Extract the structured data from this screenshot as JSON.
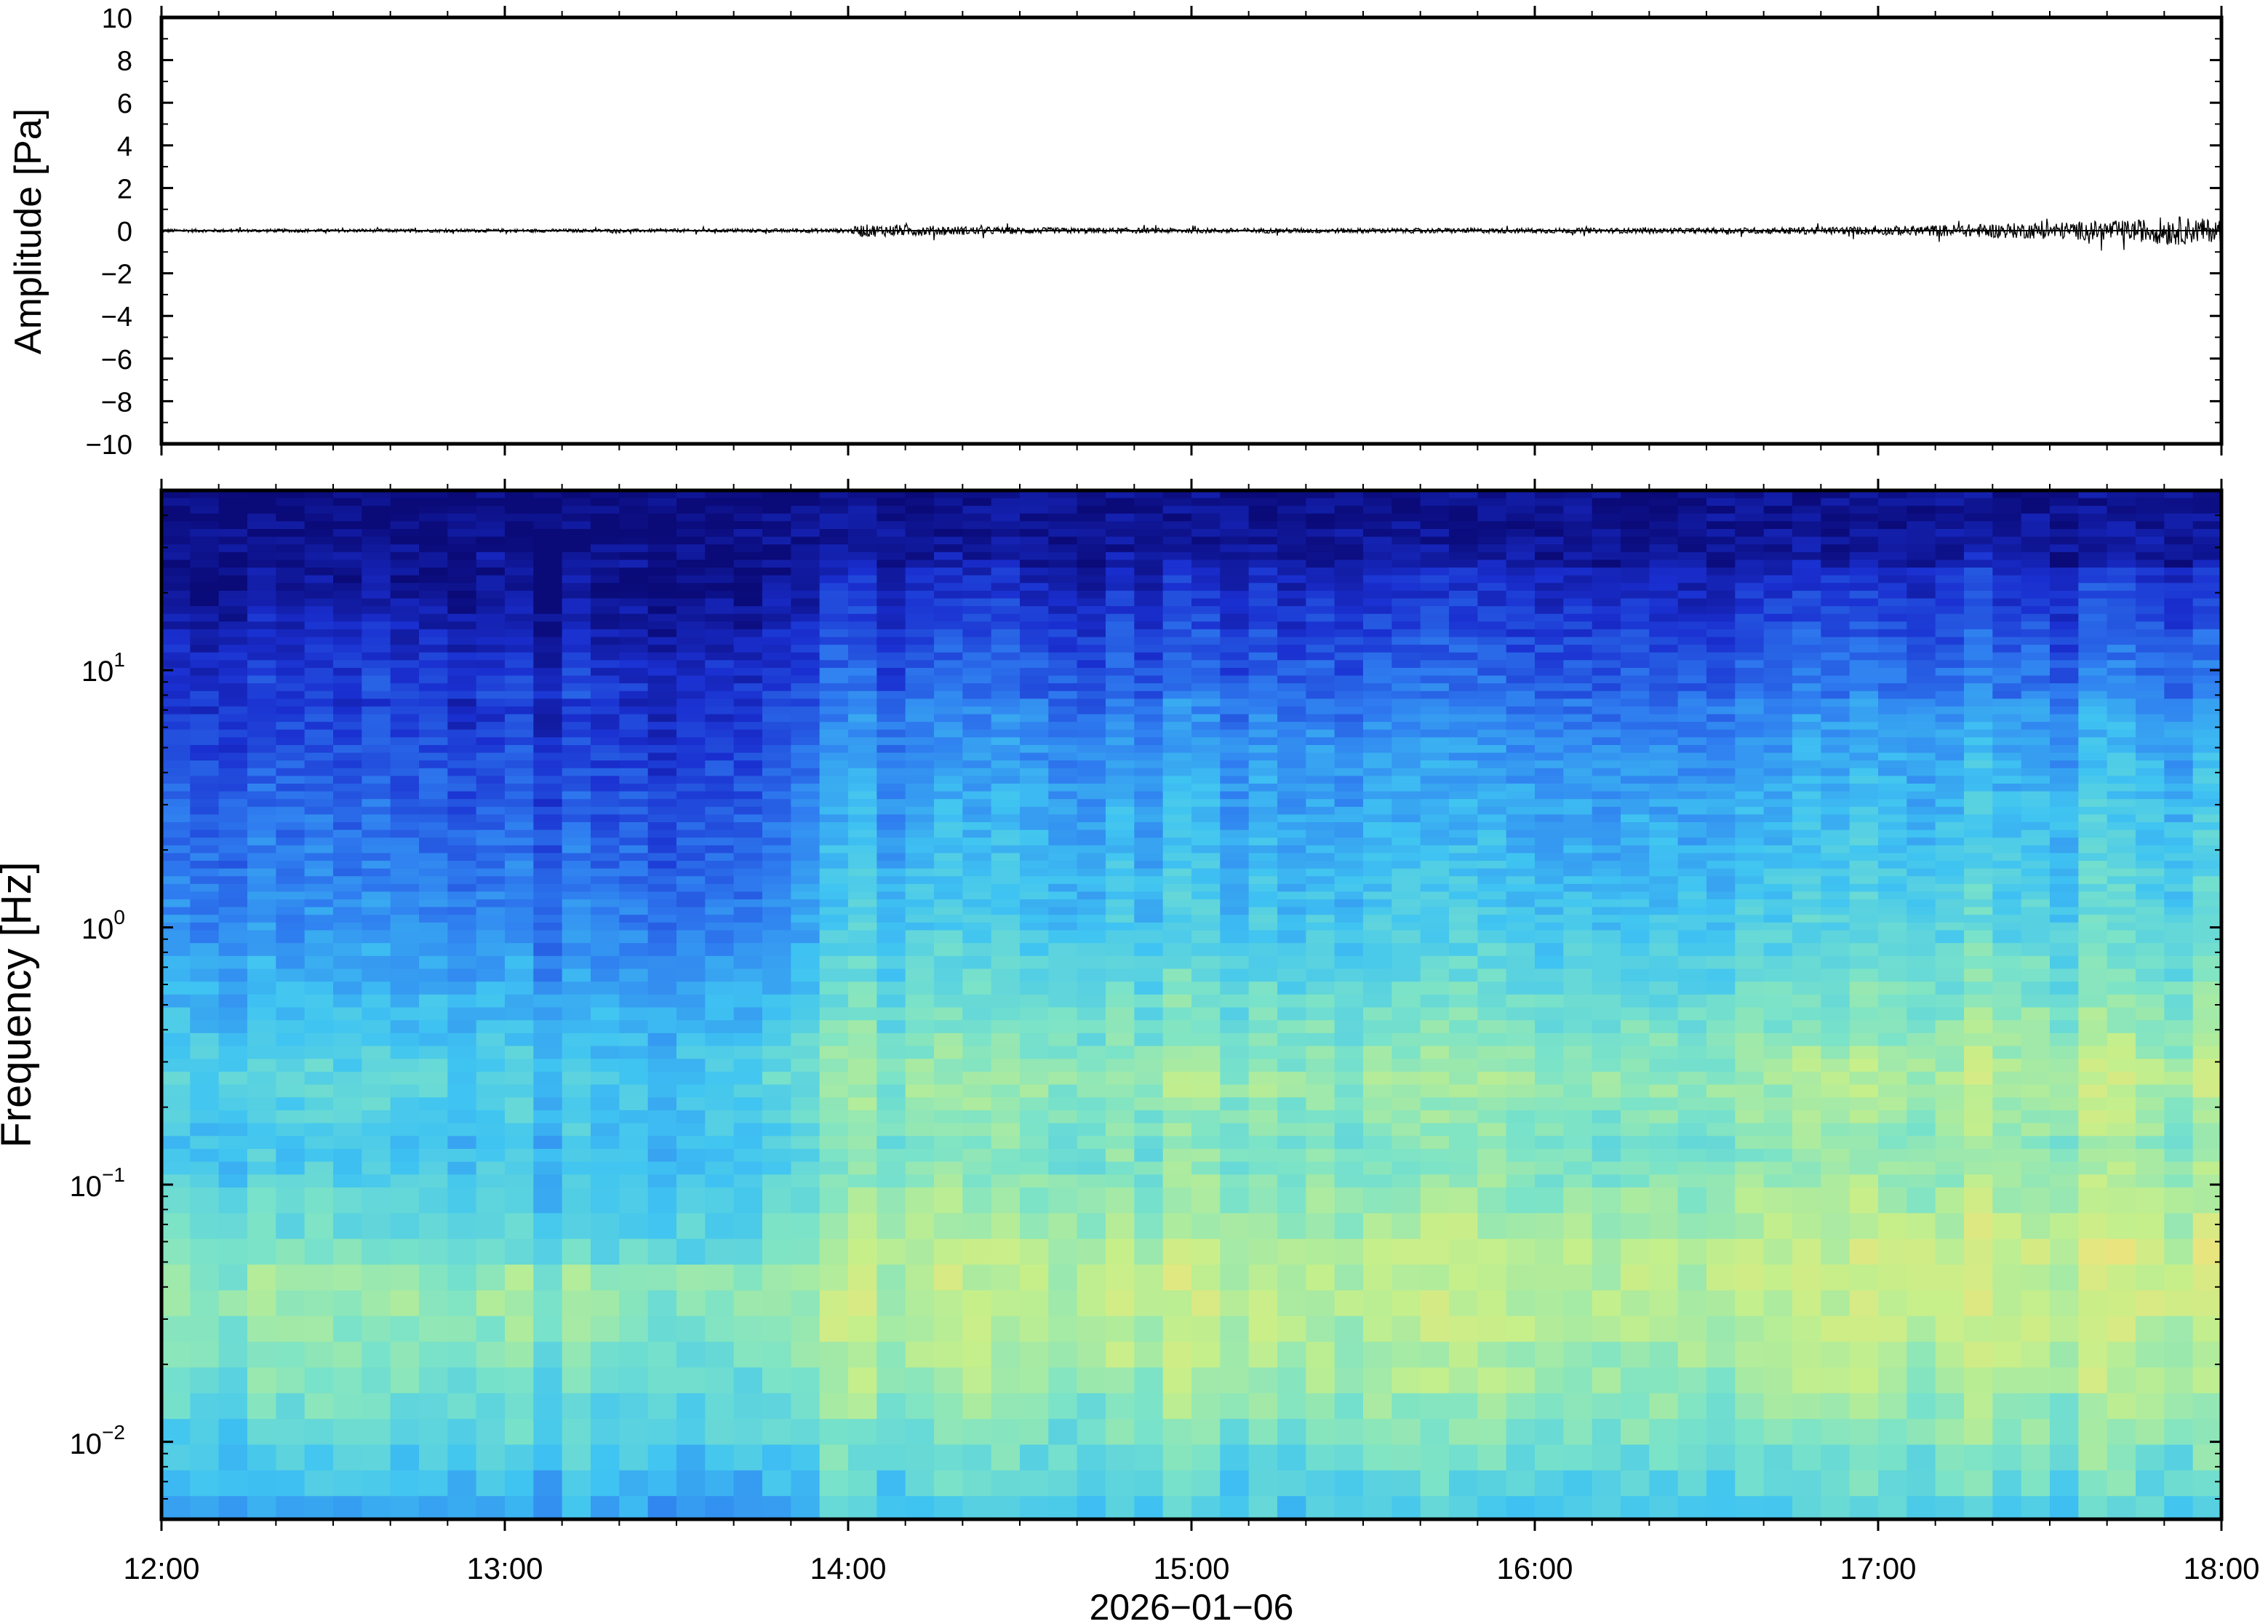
{
  "chart_data": [
    {
      "type": "line",
      "panel": "waveform",
      "ylabel": "Amplitude [Pa]",
      "ylim": [
        -10,
        10
      ],
      "yticks": [
        10,
        8,
        6,
        4,
        2,
        0,
        -2,
        -4,
        -6,
        -8,
        -10
      ],
      "ytick_labels": [
        "10",
        "8",
        "6",
        "4",
        "2",
        "0",
        "−2",
        "−4",
        "−6",
        "−8",
        "−10"
      ],
      "xlim": [
        "12:00",
        "18:00"
      ],
      "series": [
        {
          "x_hours": [
            12.0,
            12.5,
            13.0,
            13.5,
            14.0,
            14.04,
            14.5,
            15.0,
            15.5,
            16.0,
            16.5,
            17.0,
            17.25,
            17.5,
            17.75,
            17.85,
            18.0
          ],
          "y_envelope": [
            0.08,
            0.08,
            0.08,
            0.08,
            0.1,
            0.3,
            0.15,
            0.12,
            0.12,
            0.12,
            0.13,
            0.2,
            0.3,
            0.4,
            0.5,
            0.7,
            0.5
          ]
        }
      ],
      "grid": false
    },
    {
      "type": "heatmap",
      "panel": "spectrogram",
      "ylabel": "Frequency [Hz]",
      "xlabel": "2026−01−06",
      "x_tick_labels": [
        "12:00",
        "13:00",
        "14:00",
        "15:00",
        "16:00",
        "17:00",
        "18:00"
      ],
      "y_tick_labels": [
        {
          "base": "10",
          "exp": "1",
          "value": 10
        },
        {
          "base": "10",
          "exp": "0",
          "value": 1
        },
        {
          "base": "10",
          "exp": "−1",
          "value": 0.1
        },
        {
          "base": "10",
          "exp": "−2",
          "value": 0.01
        }
      ],
      "yscale": "log",
      "ylim": [
        0.005,
        50
      ],
      "xlim_hours": [
        12,
        18
      ],
      "colormap": [
        "#0a0a78",
        "#1a2fd0",
        "#2f7df0",
        "#3fc4f2",
        "#7be3c8",
        "#c6ef8a",
        "#f5e17a",
        "#f3a85a"
      ],
      "power_profile_by_log10_freq": [
        {
          "logf": 1.7,
          "level": 0.02
        },
        {
          "logf": 1.45,
          "level": 0.05
        },
        {
          "logf": 1.25,
          "level": 0.12
        },
        {
          "logf": 1.0,
          "level": 0.2
        },
        {
          "logf": 0.6,
          "level": 0.3
        },
        {
          "logf": 0.0,
          "level": 0.4
        },
        {
          "logf": -0.6,
          "level": 0.58
        },
        {
          "logf": -0.85,
          "level": 0.52
        },
        {
          "logf": -1.0,
          "level": 0.55
        },
        {
          "logf": -1.4,
          "level": 0.68
        },
        {
          "logf": -1.8,
          "level": 0.6
        },
        {
          "logf": -2.3,
          "level": 0.42
        }
      ],
      "time_modulation_hours": [
        {
          "t": 12.0,
          "shift": -0.05
        },
        {
          "t": 13.0,
          "shift": -0.12
        },
        {
          "t": 13.6,
          "shift": -0.1
        },
        {
          "t": 14.05,
          "shift": 0.05
        },
        {
          "t": 15.0,
          "shift": 0.06
        },
        {
          "t": 16.0,
          "shift": 0.05
        },
        {
          "t": 17.0,
          "shift": 0.08
        },
        {
          "t": 18.0,
          "shift": 0.12
        }
      ],
      "grid": false
    }
  ]
}
